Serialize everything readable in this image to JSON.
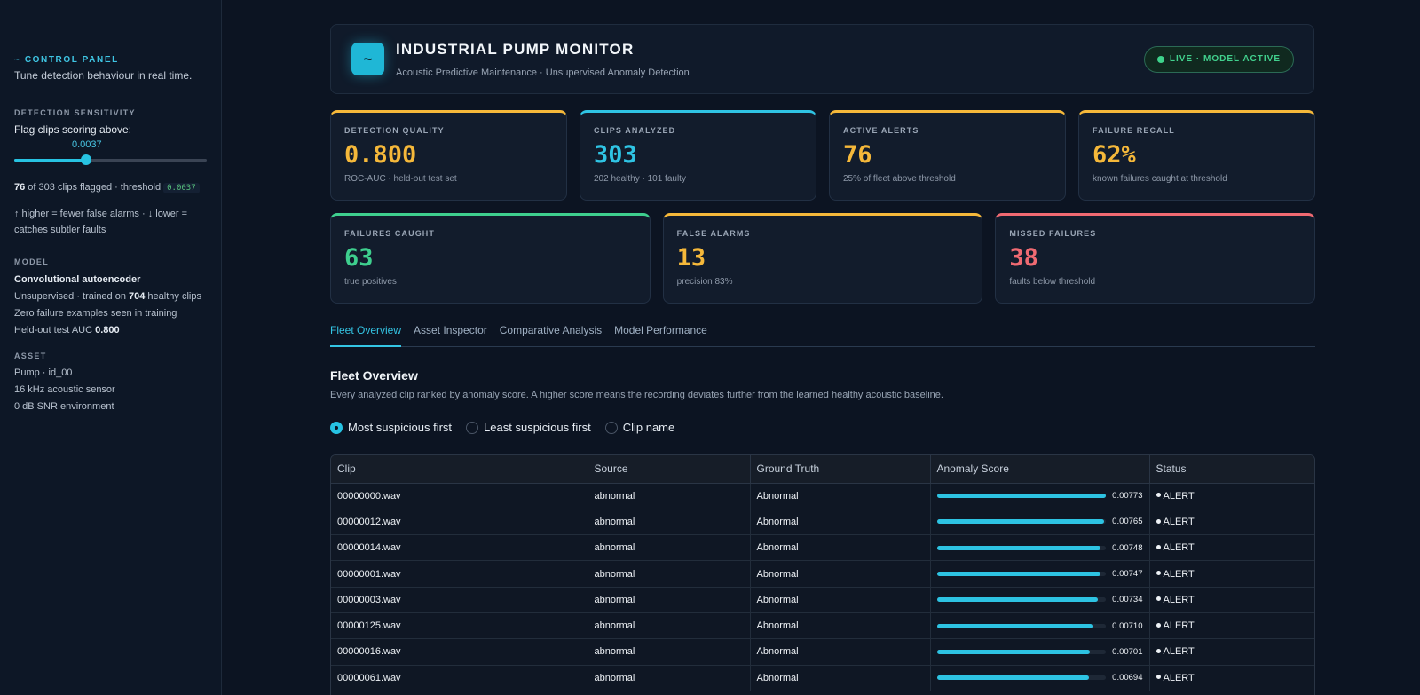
{
  "sidebar": {
    "kicker": "~ CONTROL PANEL",
    "subtitle": "Tune detection behaviour in real time.",
    "sensitivity_section": "DETECTION SENSITIVITY",
    "slider_label": "Flag clips scoring above:",
    "slider_value": "0.0037",
    "slider_level_fraction": 0.37,
    "flag_stat_count": "76",
    "flag_stat_text": " of 303 clips flagged · threshold",
    "flag_stat_threshold": "0.0037",
    "hint": "↑ higher = fewer false alarms · ↓ lower = catches subtler faults",
    "model_section": "MODEL",
    "model_name": "Convolutional autoencoder",
    "model_line1_pre": "Unsupervised · trained on ",
    "model_line1_bold": "704",
    "model_line1_post": " healthy clips",
    "model_line2": "Zero failure examples seen in training",
    "model_line3_pre": "Held-out test AUC ",
    "model_line3_bold": "0.800",
    "asset_section": "ASSET",
    "asset_line1": "Pump · id_00",
    "asset_line2": "16 kHz acoustic sensor",
    "asset_line3": "0 dB SNR environment"
  },
  "header": {
    "logo_glyph": "~",
    "title": "INDUSTRIAL PUMP MONITOR",
    "subtitle": "Acoustic Predictive Maintenance · Unsupervised Anomaly Detection",
    "badge": "LIVE · MODEL ACTIVE"
  },
  "kpis_row1": [
    {
      "label": "DETECTION QUALITY",
      "value": "0.800",
      "caption": "ROC-AUC · held-out test set"
    },
    {
      "label": "CLIPS ANALYZED",
      "value": "303",
      "caption": "202 healthy · 101 faulty"
    },
    {
      "label": "ACTIVE ALERTS",
      "value": "76",
      "caption": "25% of fleet above threshold"
    },
    {
      "label": "FAILURE RECALL",
      "value": "62%",
      "caption": "known failures caught at threshold"
    }
  ],
  "kpis_row2": [
    {
      "label": "FAILURES CAUGHT",
      "value": "63",
      "caption": "true positives"
    },
    {
      "label": "FALSE ALARMS",
      "value": "13",
      "caption": "precision 83%"
    },
    {
      "label": "MISSED FAILURES",
      "value": "38",
      "caption": "faults below threshold"
    }
  ],
  "tabs": [
    "Fleet Overview",
    "Asset Inspector",
    "Comparative Analysis",
    "Model Performance"
  ],
  "section": {
    "title": "Fleet Overview",
    "description": "Every analyzed clip ranked by anomaly score. A higher score means the recording deviates further from the learned healthy acoustic baseline."
  },
  "sort_options": [
    "Most suspicious first",
    "Least suspicious first",
    "Clip name"
  ],
  "table": {
    "columns": [
      "Clip",
      "Source",
      "Ground Truth",
      "Anomaly Score",
      "Status"
    ],
    "rows": [
      {
        "clip": "00000000.wav",
        "source": "abnormal",
        "truth": "Abnormal",
        "score": "0.00773",
        "fill": 1.0,
        "status": "ALERT"
      },
      {
        "clip": "00000012.wav",
        "source": "abnormal",
        "truth": "Abnormal",
        "score": "0.00765",
        "fill": 0.99,
        "status": "ALERT"
      },
      {
        "clip": "00000014.wav",
        "source": "abnormal",
        "truth": "Abnormal",
        "score": "0.00748",
        "fill": 0.967,
        "status": "ALERT"
      },
      {
        "clip": "00000001.wav",
        "source": "abnormal",
        "truth": "Abnormal",
        "score": "0.00747",
        "fill": 0.966,
        "status": "ALERT"
      },
      {
        "clip": "00000003.wav",
        "source": "abnormal",
        "truth": "Abnormal",
        "score": "0.00734",
        "fill": 0.95,
        "status": "ALERT"
      },
      {
        "clip": "00000125.wav",
        "source": "abnormal",
        "truth": "Abnormal",
        "score": "0.00710",
        "fill": 0.918,
        "status": "ALERT"
      },
      {
        "clip": "00000016.wav",
        "source": "abnormal",
        "truth": "Abnormal",
        "score": "0.00701",
        "fill": 0.907,
        "status": "ALERT"
      },
      {
        "clip": "00000061.wav",
        "source": "abnormal",
        "truth": "Abnormal",
        "score": "0.00694",
        "fill": 0.898,
        "status": "ALERT"
      }
    ]
  },
  "colors": {
    "accent": "#2fc4e4",
    "warning": "#f5b83a",
    "success": "#3ecf8e",
    "danger": "#f06a72"
  }
}
